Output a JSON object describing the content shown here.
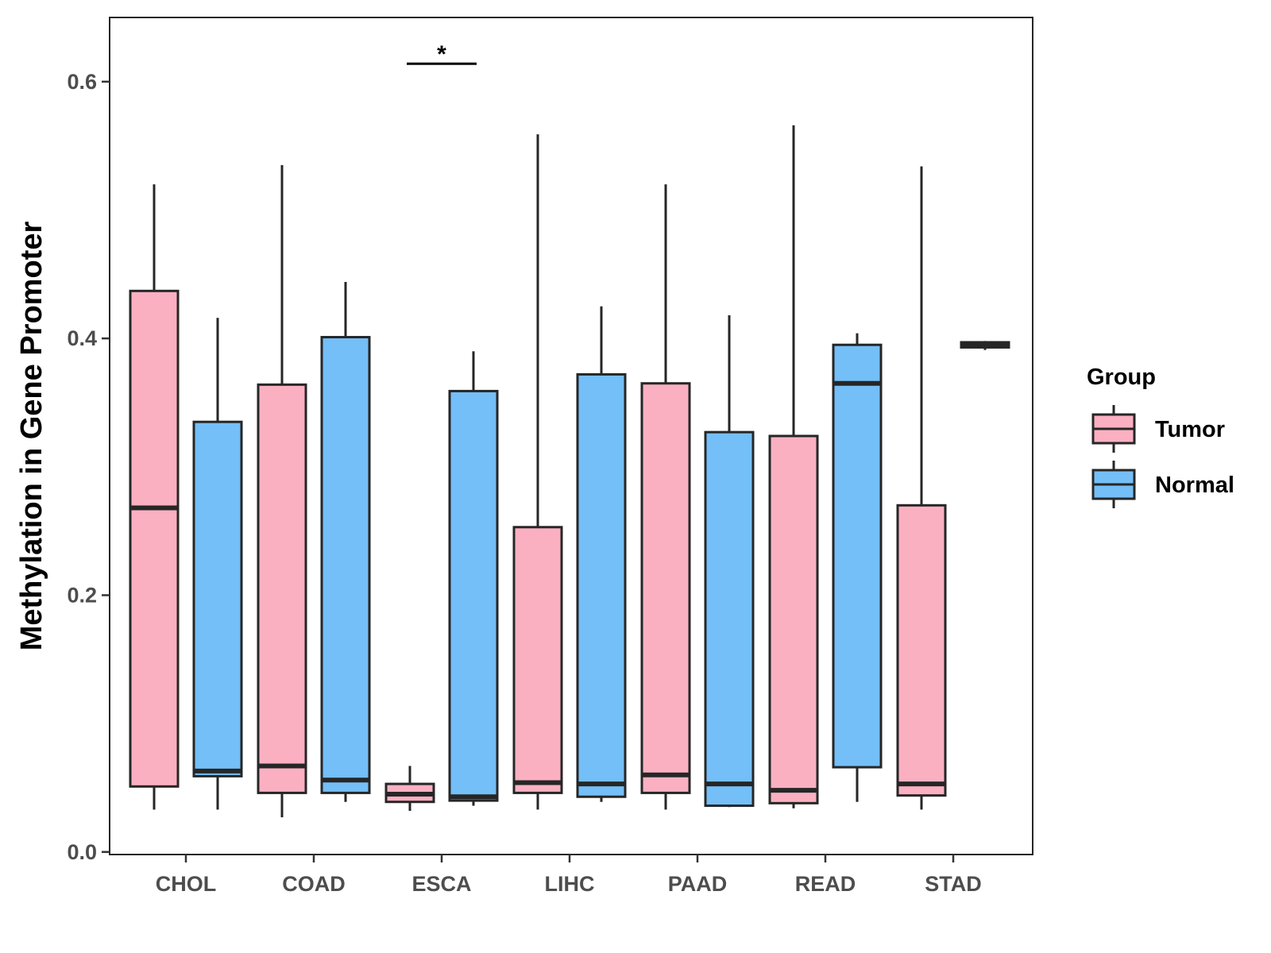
{
  "chart_data": {
    "type": "boxplot",
    "title": "",
    "xlabel": "",
    "ylabel": "Methylation in Gene Promoter",
    "ylim": [
      -0.002,
      0.65
    ],
    "yticks": [
      0.0,
      0.2,
      0.4,
      0.6
    ],
    "ytick_labels": [
      "0.0",
      "0.2",
      "0.4",
      "0.6"
    ],
    "categories": [
      "CHOL",
      "COAD",
      "ESCA",
      "LIHC",
      "PAAD",
      "READ",
      "STAD"
    ],
    "legend": {
      "title": "Group",
      "position": "right",
      "entries": [
        {
          "name": "Tumor",
          "color": "#fbb0c2"
        },
        {
          "name": "Normal",
          "color": "#74bff7"
        }
      ]
    },
    "series": [
      {
        "name": "Tumor",
        "color": "#fbb0c2",
        "boxes": [
          {
            "category": "CHOL",
            "min": 0.033,
            "q1": 0.051,
            "median": 0.268,
            "q3": 0.437,
            "max": 0.52
          },
          {
            "category": "COAD",
            "min": 0.027,
            "q1": 0.046,
            "median": 0.067,
            "q3": 0.364,
            "max": 0.535
          },
          {
            "category": "ESCA",
            "min": 0.032,
            "q1": 0.039,
            "median": 0.045,
            "q3": 0.053,
            "max": 0.067
          },
          {
            "category": "LIHC",
            "min": 0.033,
            "q1": 0.046,
            "median": 0.054,
            "q3": 0.253,
            "max": 0.559
          },
          {
            "category": "PAAD",
            "min": 0.033,
            "q1": 0.046,
            "median": 0.06,
            "q3": 0.365,
            "max": 0.52
          },
          {
            "category": "READ",
            "min": 0.034,
            "q1": 0.038,
            "median": 0.048,
            "q3": 0.324,
            "max": 0.566
          },
          {
            "category": "STAD",
            "min": 0.033,
            "q1": 0.044,
            "median": 0.053,
            "q3": 0.27,
            "max": 0.534
          }
        ]
      },
      {
        "name": "Normal",
        "color": "#74bff7",
        "boxes": [
          {
            "category": "CHOL",
            "min": 0.033,
            "q1": 0.059,
            "median": 0.063,
            "q3": 0.335,
            "max": 0.416
          },
          {
            "category": "COAD",
            "min": 0.039,
            "q1": 0.046,
            "median": 0.056,
            "q3": 0.401,
            "max": 0.444
          },
          {
            "category": "ESCA",
            "min": 0.036,
            "q1": 0.04,
            "median": 0.043,
            "q3": 0.359,
            "max": 0.39
          },
          {
            "category": "LIHC",
            "min": 0.039,
            "q1": 0.043,
            "median": 0.053,
            "q3": 0.372,
            "max": 0.425
          },
          {
            "category": "PAAD",
            "min": 0.035,
            "q1": 0.036,
            "median": 0.053,
            "q3": 0.327,
            "max": 0.418
          },
          {
            "category": "READ",
            "min": 0.039,
            "q1": 0.066,
            "median": 0.365,
            "q3": 0.395,
            "max": 0.404
          },
          {
            "category": "STAD",
            "min": 0.391,
            "q1": 0.393,
            "median": 0.395,
            "q3": 0.397,
            "max": 0.398
          }
        ]
      }
    ],
    "annotations": [
      {
        "category": "ESCA",
        "text": "*",
        "y": 0.614
      }
    ]
  },
  "colors": {
    "box_outline": "#262626",
    "tick_text": "#4d4d4d",
    "panel_border": "#262626"
  }
}
